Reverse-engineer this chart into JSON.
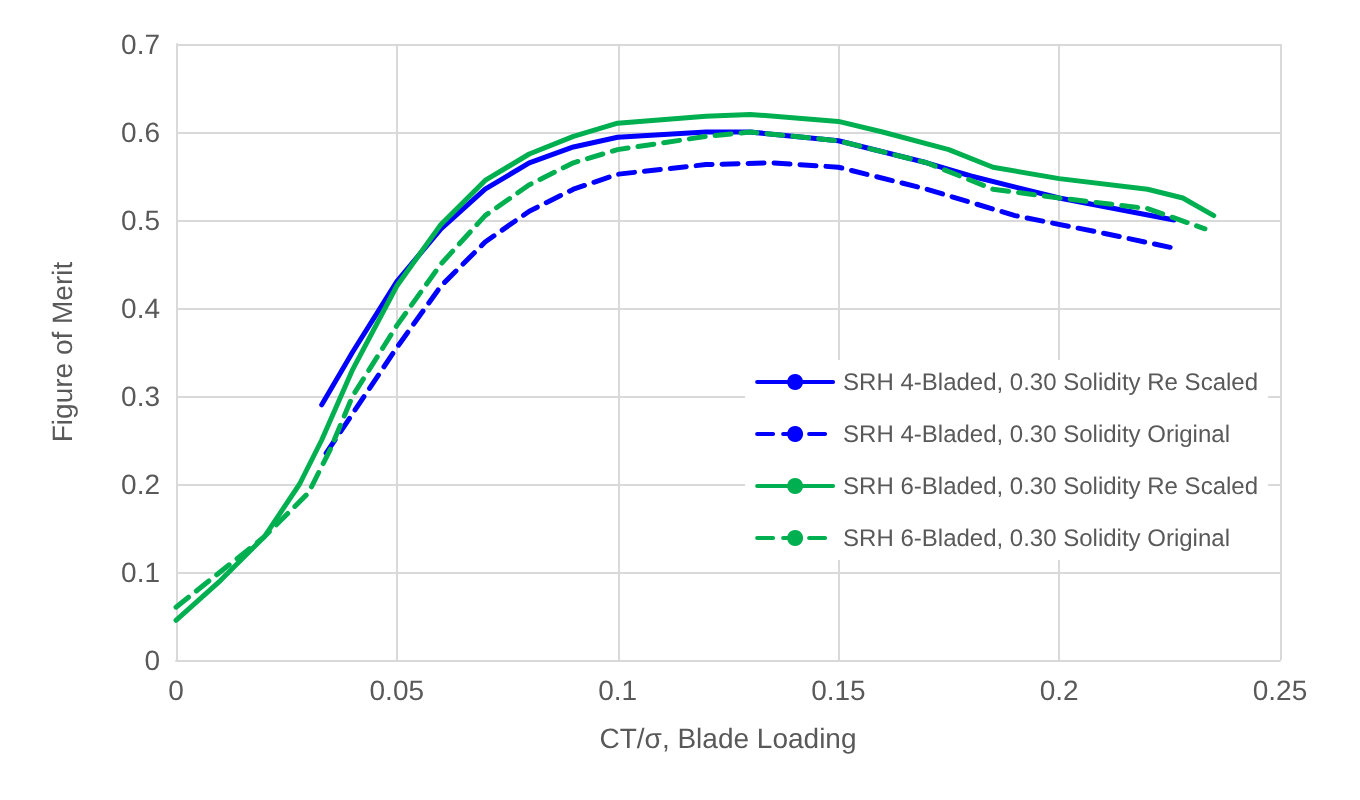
{
  "chart_data": {
    "type": "line",
    "xlabel": "CT/σ, Blade Loading",
    "ylabel": "Figure of Merit",
    "xlim": [
      0,
      0.25
    ],
    "xticks": [
      0,
      0.05,
      0.1,
      0.15,
      0.2,
      0.25
    ],
    "ylim": [
      0,
      0.7
    ],
    "yticks": [
      0,
      0.1,
      0.2,
      0.3,
      0.4,
      0.5,
      0.6,
      0.7
    ],
    "grid": true,
    "legend": "right",
    "marker": "none",
    "series": [
      {
        "name": "SRH 4-Bladed, 0.30 Solidity Re Scaled",
        "color": "#0000ff",
        "line_style": "solid",
        "x": [
          0.033,
          0.04,
          0.05,
          0.06,
          0.07,
          0.08,
          0.09,
          0.1,
          0.12,
          0.13,
          0.15,
          0.17,
          0.18,
          0.2,
          0.226
        ],
        "values": [
          0.29,
          0.35,
          0.43,
          0.49,
          0.535,
          0.565,
          0.583,
          0.594,
          0.6,
          0.6,
          0.59,
          0.565,
          0.55,
          0.525,
          0.5
        ]
      },
      {
        "name": "SRH 4-Bladed, 0.30 Solidity Original",
        "color": "#0000ff",
        "line_style": "dashed",
        "x": [
          0.034,
          0.04,
          0.05,
          0.06,
          0.07,
          0.08,
          0.09,
          0.1,
          0.12,
          0.135,
          0.15,
          0.17,
          0.19,
          0.21,
          0.226
        ],
        "values": [
          0.235,
          0.28,
          0.355,
          0.425,
          0.475,
          0.51,
          0.535,
          0.552,
          0.563,
          0.565,
          0.56,
          0.535,
          0.505,
          0.485,
          0.468
        ]
      },
      {
        "name": "SRH 6-Bladed, 0.30 Solidity Re Scaled",
        "color": "#00b050",
        "line_style": "solid",
        "x": [
          0,
          0.01,
          0.02,
          0.028,
          0.033,
          0.04,
          0.05,
          0.06,
          0.07,
          0.08,
          0.09,
          0.1,
          0.12,
          0.13,
          0.15,
          0.16,
          0.175,
          0.185,
          0.2,
          0.22,
          0.228,
          0.235
        ],
        "values": [
          0.045,
          0.09,
          0.14,
          0.2,
          0.25,
          0.33,
          0.425,
          0.495,
          0.545,
          0.575,
          0.595,
          0.61,
          0.618,
          0.62,
          0.612,
          0.6,
          0.58,
          0.56,
          0.547,
          0.535,
          0.525,
          0.505
        ]
      },
      {
        "name": "SRH 6-Bladed, 0.30 Solidity Original",
        "color": "#00b050",
        "line_style": "dashed",
        "x": [
          0,
          0.01,
          0.02,
          0.03,
          0.035,
          0.04,
          0.05,
          0.06,
          0.07,
          0.08,
          0.09,
          0.1,
          0.12,
          0.13,
          0.15,
          0.17,
          0.185,
          0.2,
          0.22,
          0.233
        ],
        "values": [
          0.06,
          0.1,
          0.14,
          0.19,
          0.24,
          0.3,
          0.38,
          0.45,
          0.505,
          0.54,
          0.565,
          0.58,
          0.595,
          0.6,
          0.59,
          0.565,
          0.535,
          0.525,
          0.513,
          0.49
        ]
      }
    ]
  }
}
